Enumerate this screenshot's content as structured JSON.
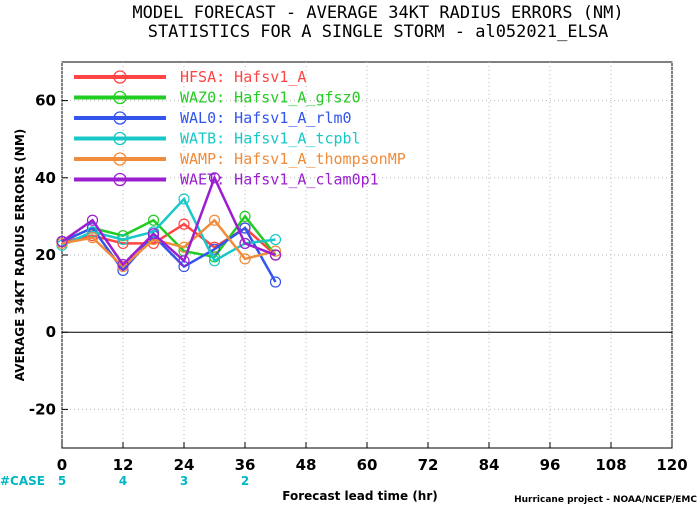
{
  "chart_data": {
    "type": "line",
    "title": "MODEL FORECAST - AVERAGE 34KT RADIUS ERRORS (NM)",
    "subtitle": "STATISTICS FOR A SINGLE STORM - al052021_ELSA",
    "xlabel": "Forecast lead time (hr)",
    "ylabel": "AVERAGE 34KT RADIUS ERRORS (NM)",
    "xlim": [
      0,
      120
    ],
    "ylim": [
      -30,
      70
    ],
    "x_ticks": [
      "0",
      "12",
      "24",
      "36",
      "48",
      "60",
      "72",
      "84",
      "96",
      "108",
      "120"
    ],
    "y_ticks": [
      "-20",
      "0",
      "20",
      "40",
      "60"
    ],
    "grid": true,
    "legend_position": "top-left",
    "case_label": "#CASE",
    "cases": [
      {
        "x": 0,
        "label": "5"
      },
      {
        "x": 12,
        "label": "4"
      },
      {
        "x": 24,
        "label": "3"
      },
      {
        "x": 36,
        "label": "2"
      }
    ],
    "credit": "Hurricane project - NOAA/NCEP/EMC",
    "x": [
      0,
      6,
      12,
      18,
      24,
      30,
      36,
      42
    ],
    "series": [
      {
        "name": "HFSA: Hafsv1_A",
        "color": "#ff4444",
        "values": [
          23.5,
          25,
          23,
          23,
          28,
          22,
          27,
          20
        ]
      },
      {
        "name": "WAZ0: Hafsv1_A_gfsz0",
        "color": "#22cc22",
        "values": [
          23.5,
          27,
          25,
          29,
          21,
          19.5,
          30,
          20
        ]
      },
      {
        "name": "WAL0: Hafsv1_A_rlm0",
        "color": "#3355ee",
        "values": [
          23.5,
          27,
          16,
          25,
          17,
          21.5,
          27,
          13
        ]
      },
      {
        "name": "WATB: Hafsv1_A_tcpbl",
        "color": "#18c8c8",
        "values": [
          22.5,
          26,
          24,
          26,
          34.5,
          18.5,
          23,
          24
        ]
      },
      {
        "name": "WAMP: Hafsv1_A_thompsonMP",
        "color": "#f08c3a",
        "values": [
          23,
          24.5,
          17,
          24,
          22,
          29,
          19,
          21
        ]
      },
      {
        "name": "WAET: Hafsv1_A_clam0p1",
        "color": "#9b1fd0",
        "values": [
          23.5,
          29,
          17.5,
          25.5,
          18.5,
          40,
          23,
          20
        ]
      }
    ]
  }
}
